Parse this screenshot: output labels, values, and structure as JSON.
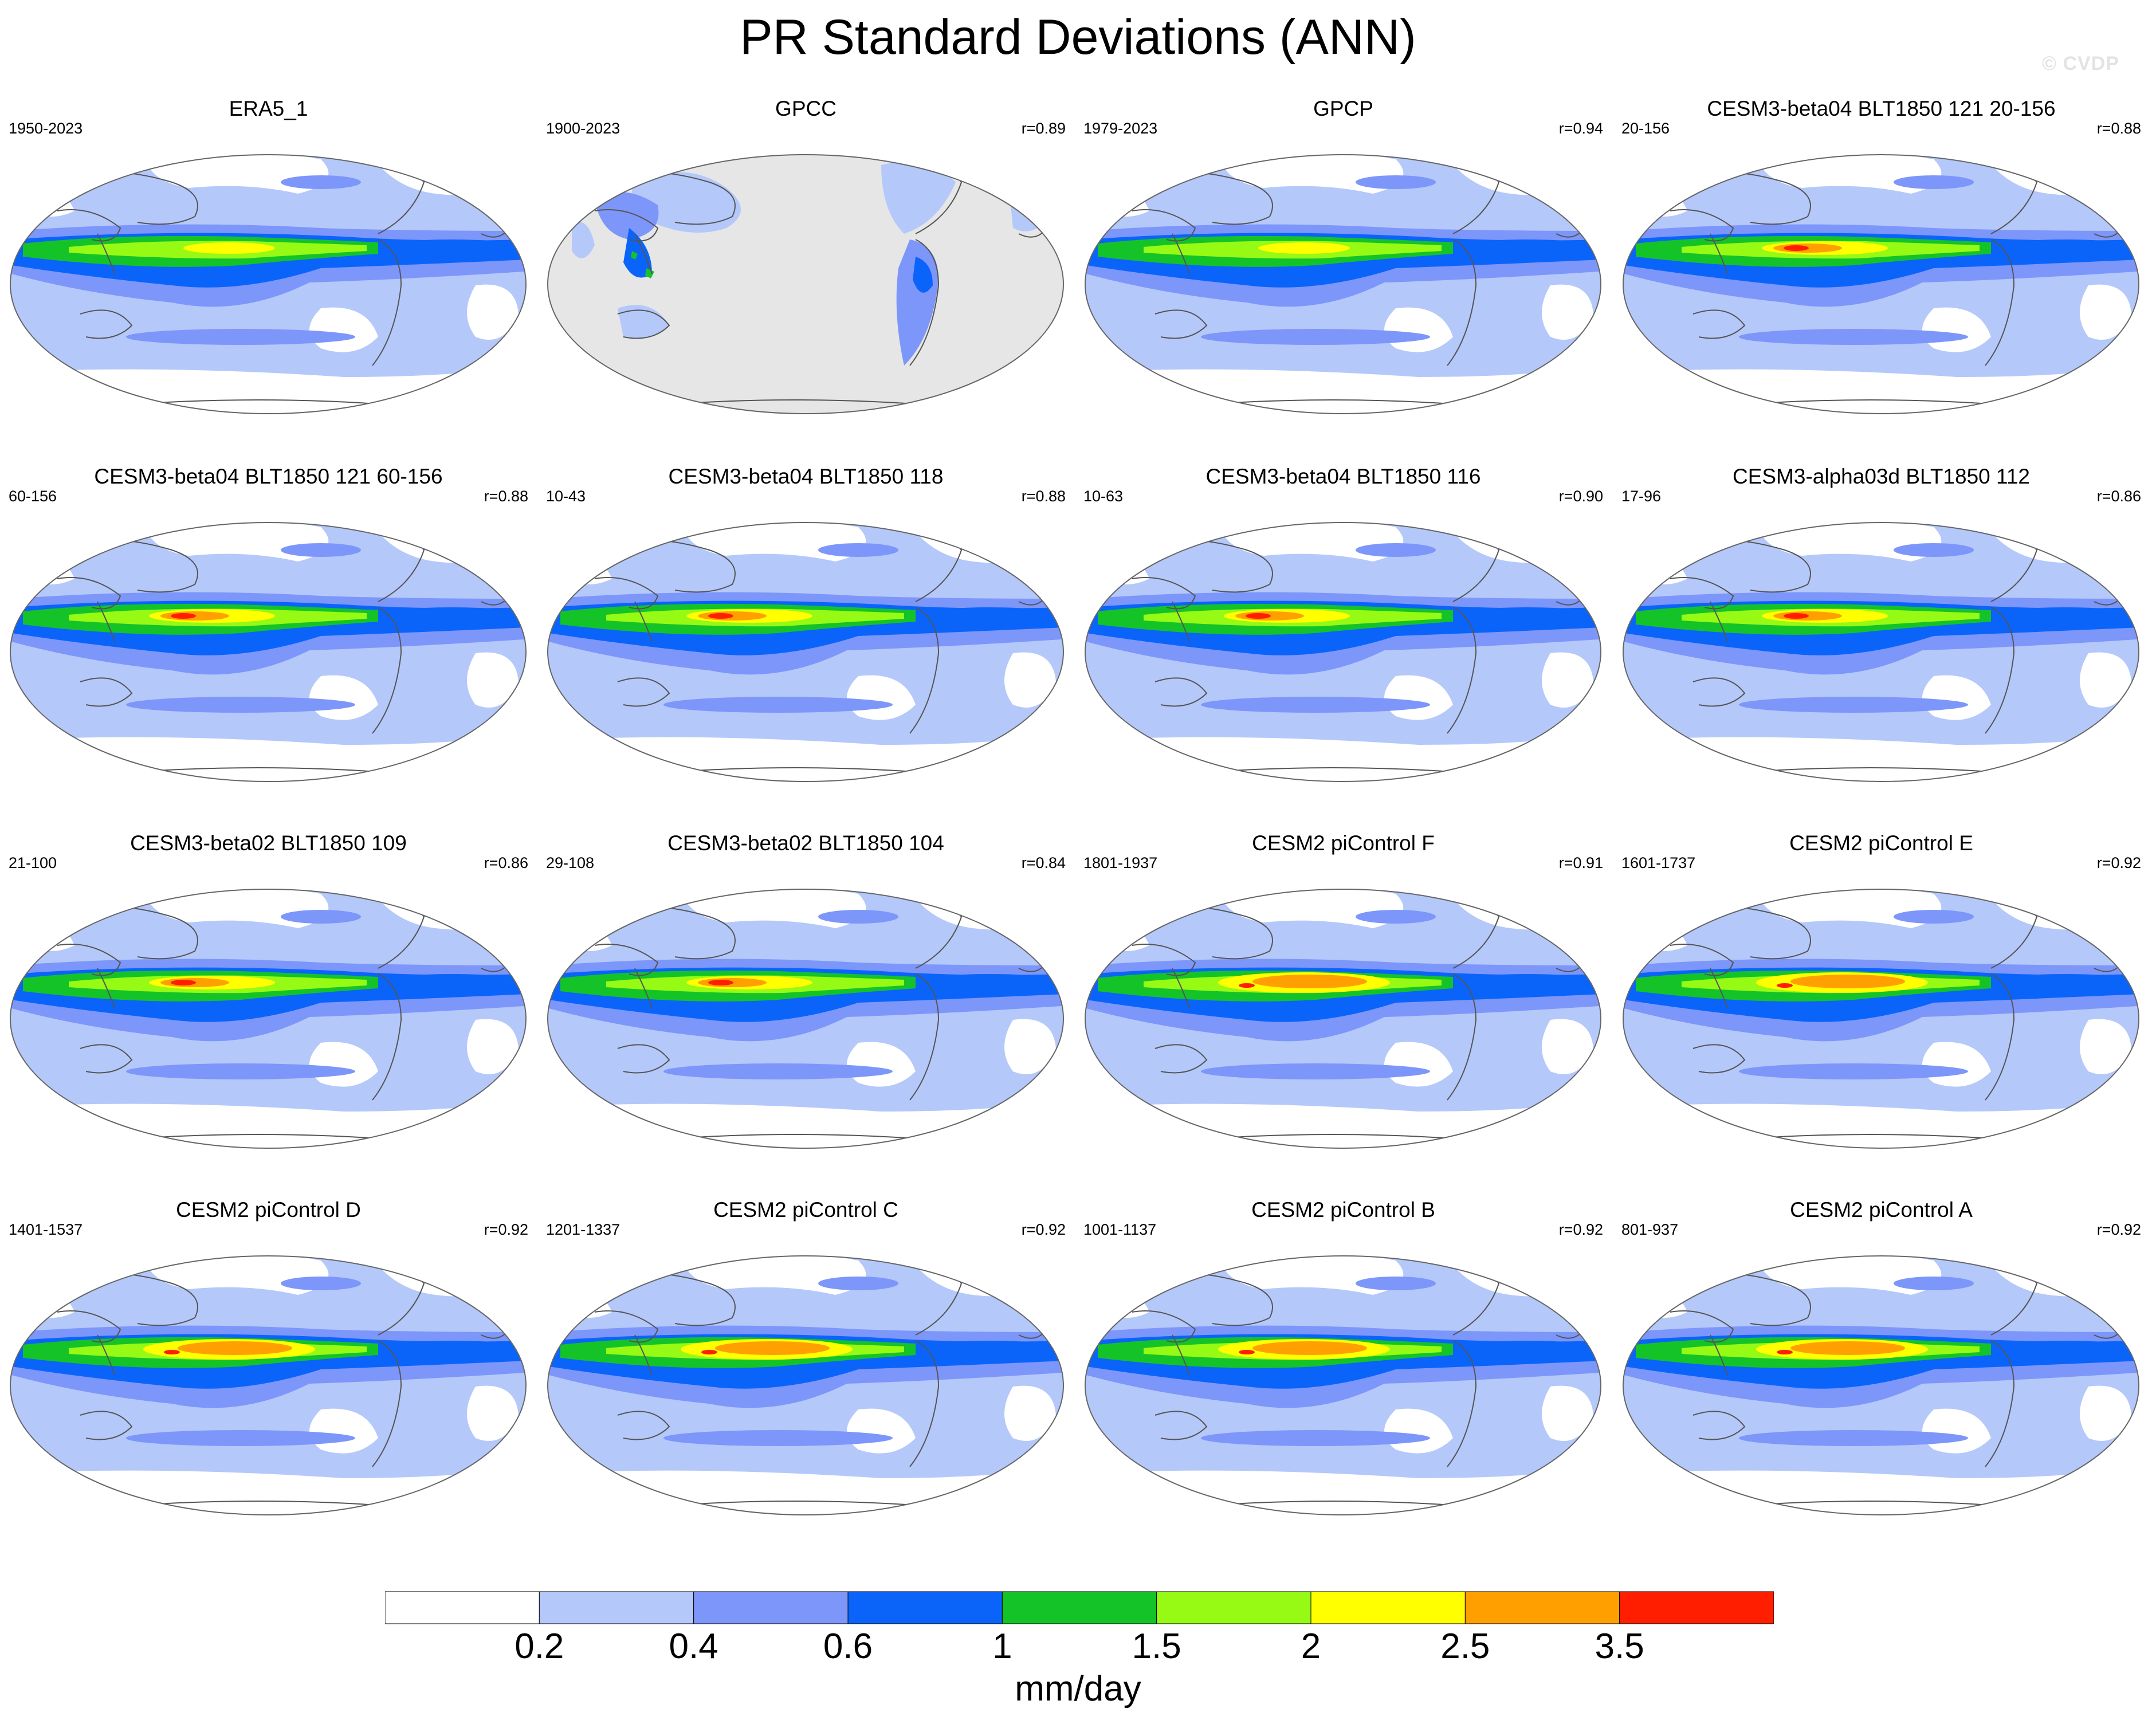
{
  "title": "PR Standard Deviations (ANN)",
  "watermark": "© CVDP",
  "panels": [
    {
      "title": "ERA5_1",
      "years": "1950-2023",
      "r": "",
      "style": "obs"
    },
    {
      "title": "GPCC",
      "years": "1900-2023",
      "r": "r=0.89",
      "style": "land"
    },
    {
      "title": "GPCP",
      "years": "1979-2023",
      "r": "r=0.94",
      "style": "obs"
    },
    {
      "title": "CESM3-beta04 BLT1850 121 20-156",
      "years": "20-156",
      "r": "r=0.88",
      "style": "model"
    },
    {
      "title": "CESM3-beta04 BLT1850 121 60-156",
      "years": "60-156",
      "r": "r=0.88",
      "style": "model"
    },
    {
      "title": "CESM3-beta04 BLT1850 118",
      "years": "10-43",
      "r": "r=0.88",
      "style": "model"
    },
    {
      "title": "CESM3-beta04 BLT1850 116",
      "years": "10-63",
      "r": "r=0.90",
      "style": "model"
    },
    {
      "title": "CESM3-alpha03d BLT1850 112",
      "years": "17-96",
      "r": "r=0.86",
      "style": "model"
    },
    {
      "title": "CESM3-beta02 BLT1850 109",
      "years": "21-100",
      "r": "r=0.86",
      "style": "model"
    },
    {
      "title": "CESM3-beta02 BLT1850 104",
      "years": "29-108",
      "r": "r=0.84",
      "style": "model"
    },
    {
      "title": "CESM2 piControl F",
      "years": "1801-1937",
      "r": "r=0.91",
      "style": "cesm2"
    },
    {
      "title": "CESM2 piControl E",
      "years": "1601-1737",
      "r": "r=0.92",
      "style": "cesm2"
    },
    {
      "title": "CESM2 piControl D",
      "years": "1401-1537",
      "r": "r=0.92",
      "style": "cesm2"
    },
    {
      "title": "CESM2 piControl C",
      "years": "1201-1337",
      "r": "r=0.92",
      "style": "cesm2"
    },
    {
      "title": "CESM2 piControl B",
      "years": "1001-1137",
      "r": "r=0.92",
      "style": "cesm2"
    },
    {
      "title": "CESM2 piControl A",
      "years": "801-937",
      "r": "r=0.92",
      "style": "cesm2"
    }
  ],
  "colorbar": {
    "colors": [
      "#ffffff",
      "#b4c8fa",
      "#7d96fa",
      "#0a64fa",
      "#14c328",
      "#96fa14",
      "#ffff00",
      "#ffa000",
      "#ff1e00"
    ],
    "tick_labels": [
      "0.2",
      "0.4",
      "0.6",
      "1",
      "1.5",
      "2",
      "2.5",
      "3.5"
    ],
    "unit": "mm/day"
  },
  "map_colors": {
    "ocean_bg": "#b4c8fa",
    "missing": "#e6e6e6",
    "coast": "#555555"
  }
}
